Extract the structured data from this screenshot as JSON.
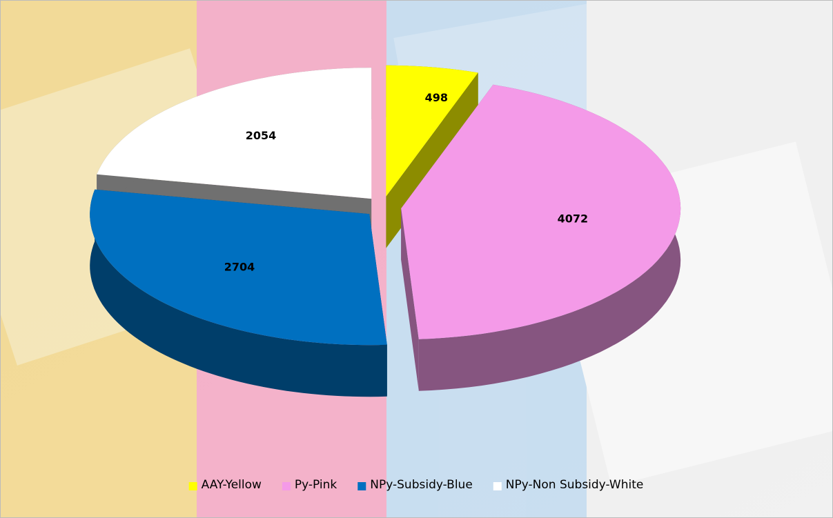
{
  "chart_data": {
    "type": "pie",
    "categories": [
      "AAY-Yellow",
      "Py-Pink",
      "NPy-Subsidy-Blue",
      "NPy-Non Subsidy-White"
    ],
    "values": [
      498,
      4072,
      2704,
      2054
    ],
    "colors": [
      "#ffff00",
      "#f49ae8",
      "#0070c0",
      "#ffffff"
    ],
    "legend": "bottom"
  }
}
